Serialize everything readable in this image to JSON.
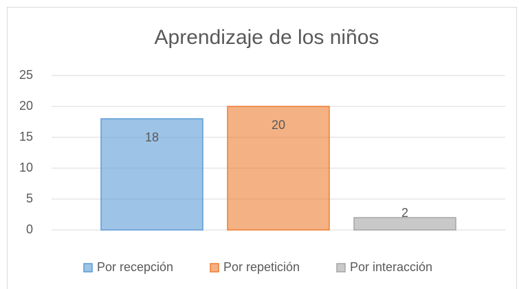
{
  "chart_data": {
    "type": "bar",
    "title": "Aprendizaje de los niños",
    "categories": [
      null
    ],
    "series": [
      {
        "name": "Por recepción",
        "color": "#5b9bd5",
        "values": [
          18
        ]
      },
      {
        "name": "Por repetición",
        "color": "#ed7d31",
        "values": [
          20
        ]
      },
      {
        "name": "Por interacción",
        "color": "#a5a5a5",
        "values": [
          2
        ]
      }
    ],
    "ylim": [
      0,
      25
    ],
    "yticks": [
      0,
      5,
      10,
      15,
      20,
      25
    ],
    "grid": true,
    "legend": "bottom",
    "data_labels": true
  }
}
